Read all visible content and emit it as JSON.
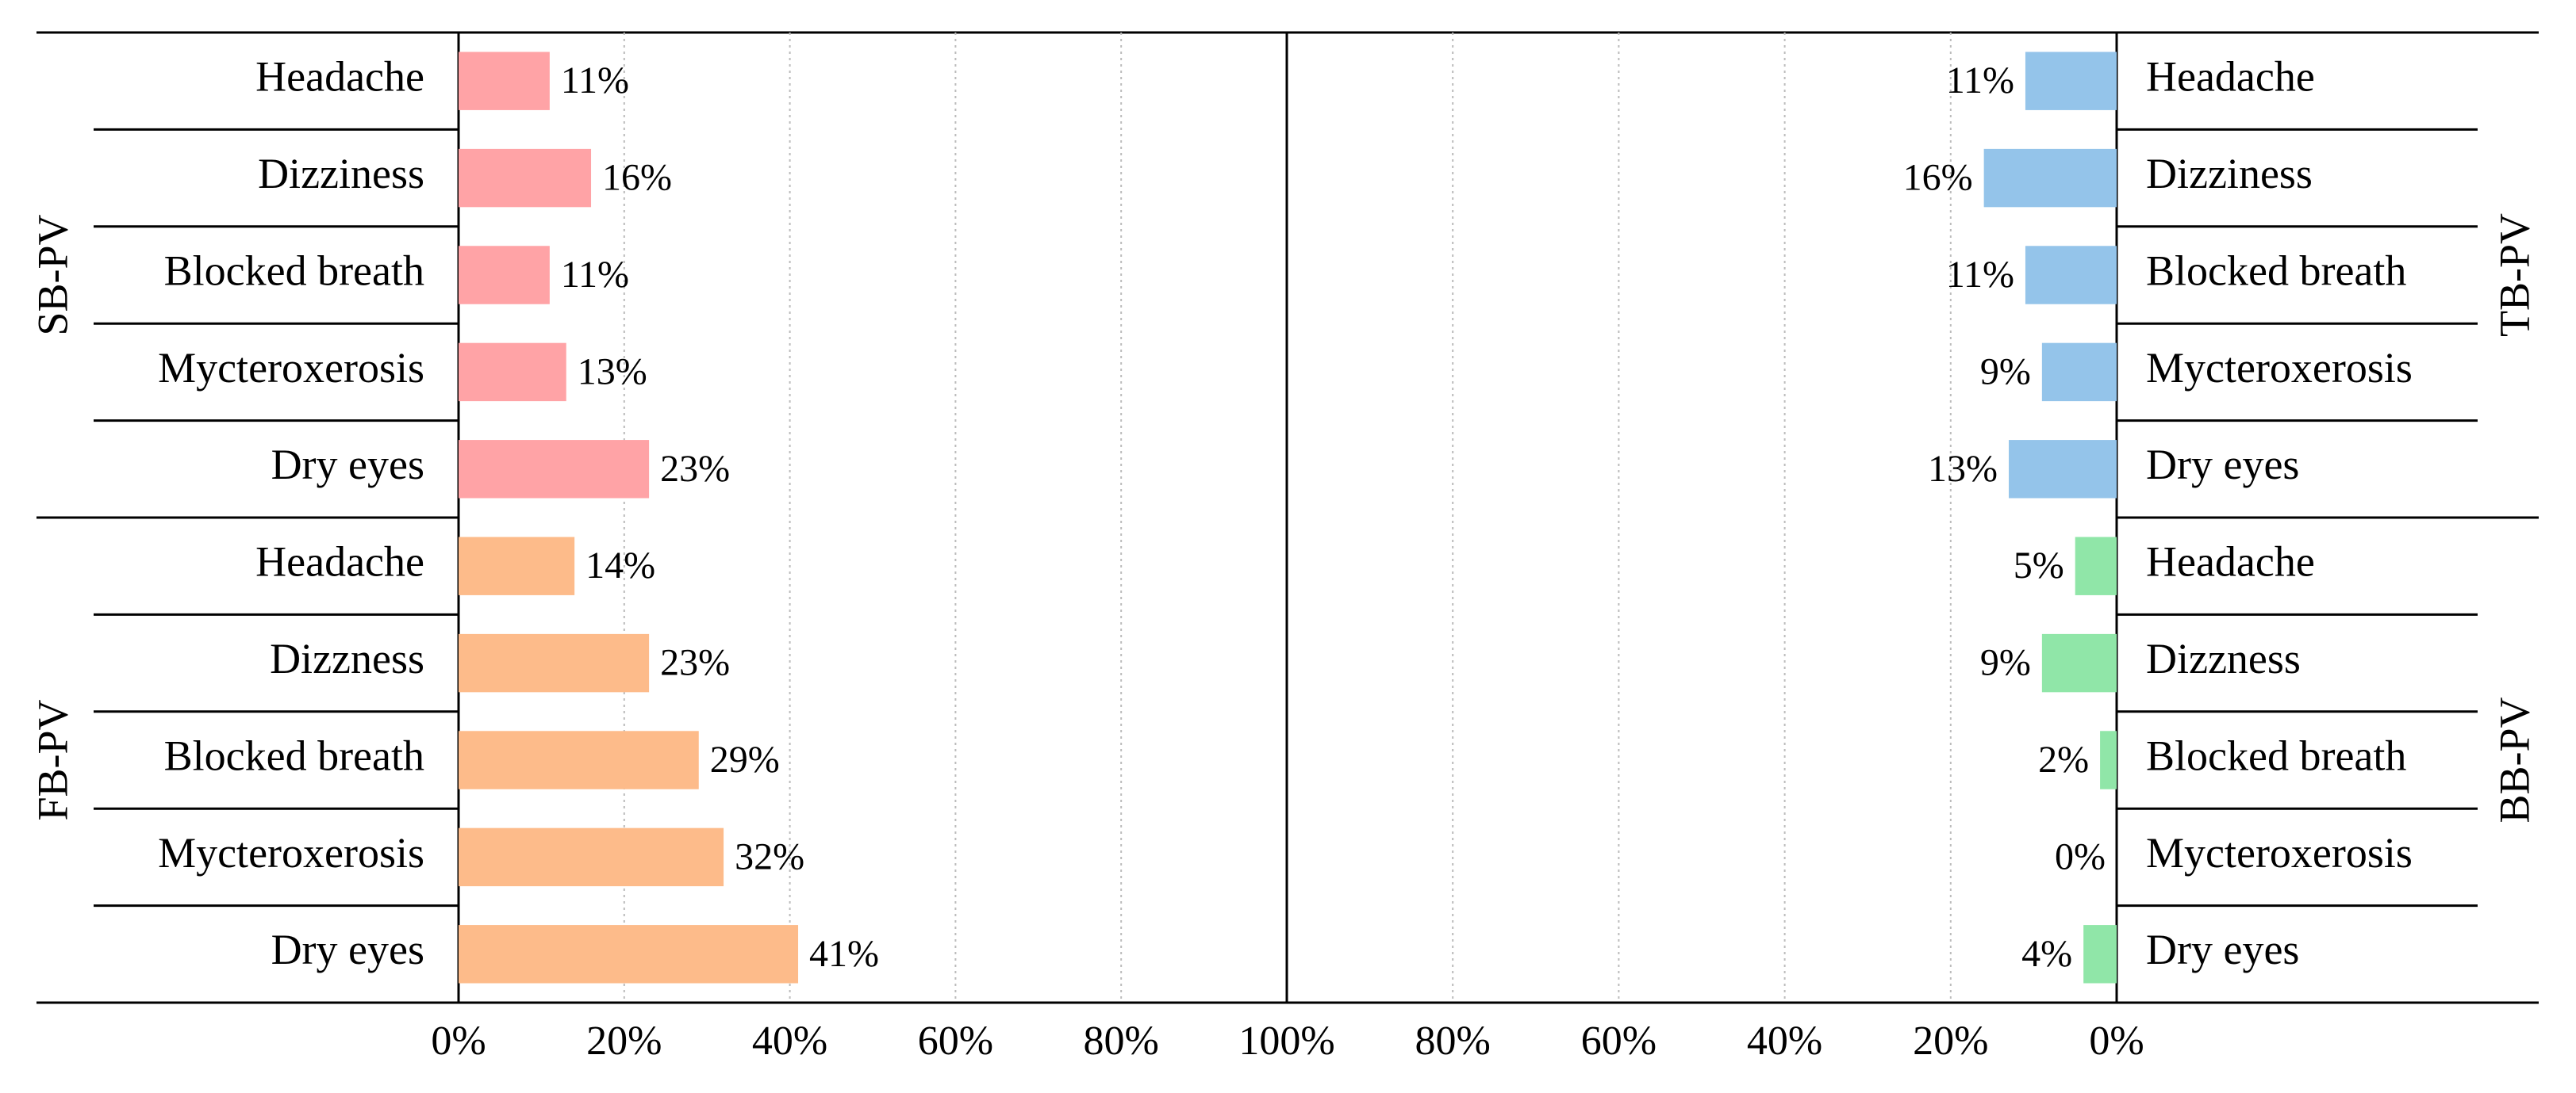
{
  "chart_data": [
    {
      "type": "bar",
      "orientation": "horizontal",
      "grid": true,
      "x_reversed": false,
      "xlim": [
        0,
        100
      ],
      "xticks": [
        {
          "value": 0,
          "label": "0%"
        },
        {
          "value": 20,
          "label": "20%"
        },
        {
          "value": 40,
          "label": "40%"
        },
        {
          "value": 60,
          "label": "60%"
        },
        {
          "value": 80,
          "label": "80%"
        },
        {
          "value": 100,
          "label": "100%"
        }
      ],
      "series": [
        {
          "name": "SB-PV",
          "color": "#ffa3a6",
          "categories": [
            "Headache",
            "Dizziness",
            "Blocked breath",
            "Mycteroxerosis",
            "Dry eyes"
          ],
          "values": [
            11,
            16,
            11,
            13,
            23
          ],
          "value_labels": [
            "11%",
            "16%",
            "11%",
            "13%",
            "23%"
          ]
        },
        {
          "name": "FB-PV",
          "color": "#fdbb8a",
          "categories": [
            "Headache",
            "Dizzness",
            "Blocked breath",
            "Mycteroxerosis",
            "Dry eyes"
          ],
          "values": [
            14,
            23,
            29,
            32,
            41
          ],
          "value_labels": [
            "14%",
            "23%",
            "29%",
            "32%",
            "41%"
          ]
        }
      ]
    },
    {
      "type": "bar",
      "orientation": "horizontal",
      "grid": true,
      "x_reversed": true,
      "xlim": [
        0,
        100
      ],
      "xticks": [
        {
          "value": 0,
          "label": "0%"
        },
        {
          "value": 20,
          "label": "20%"
        },
        {
          "value": 40,
          "label": "40%"
        },
        {
          "value": 60,
          "label": "60%"
        },
        {
          "value": 80,
          "label": "80%"
        }
      ],
      "series": [
        {
          "name": "TB-PV",
          "color": "#94c4ea",
          "categories": [
            "Headache",
            "Dizziness",
            "Blocked breath",
            "Mycteroxerosis",
            "Dry eyes"
          ],
          "values": [
            11,
            16,
            11,
            9,
            13
          ],
          "value_labels": [
            "11%",
            "16%",
            "11%",
            "9%",
            "13%"
          ]
        },
        {
          "name": "BB-PV",
          "color": "#90e6a8",
          "categories": [
            "Headache",
            "Dizzness",
            "Blocked breath",
            "Mycteroxerosis",
            "Dry eyes"
          ],
          "values": [
            5,
            9,
            2,
            0,
            4
          ],
          "value_labels": [
            "5%",
            "9%",
            "2%",
            "0%",
            "4%"
          ]
        }
      ]
    }
  ]
}
